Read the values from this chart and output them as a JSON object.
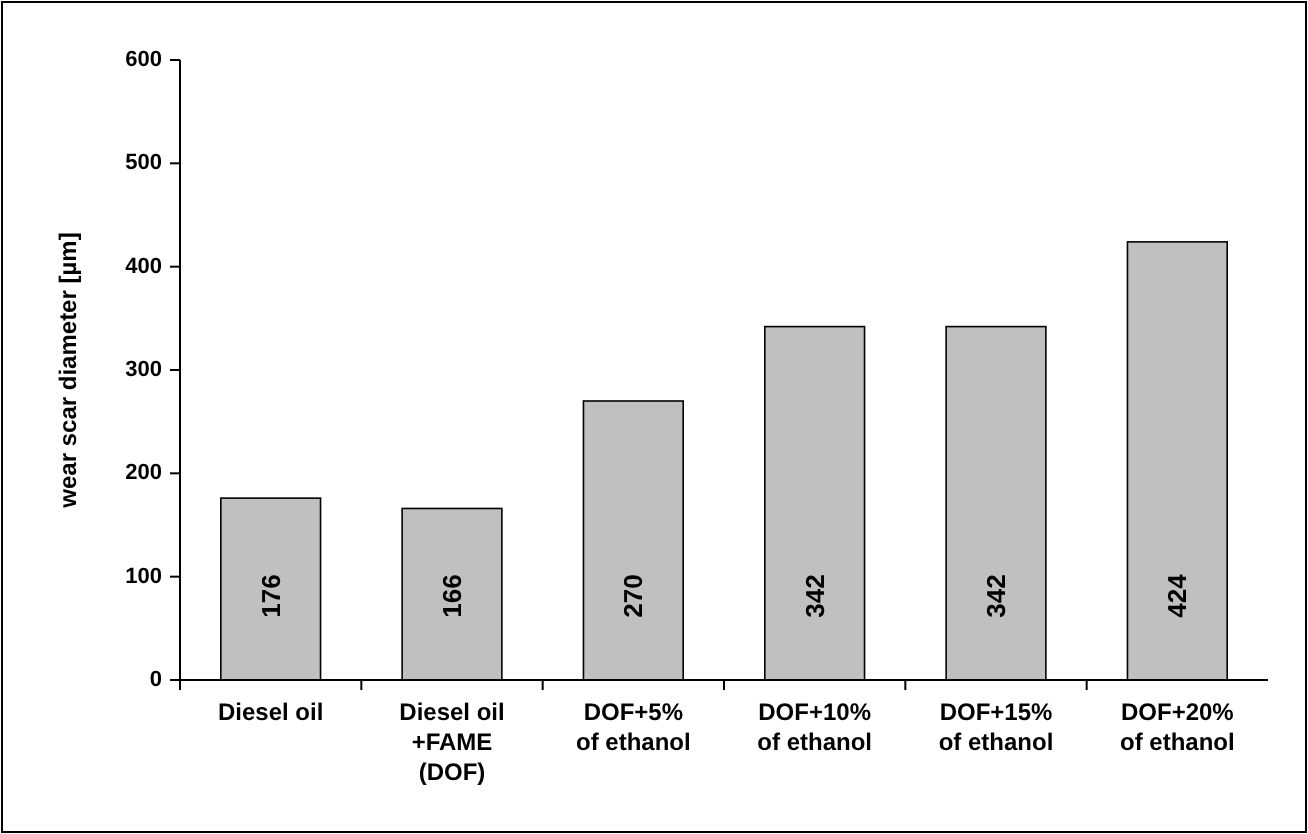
{
  "chart_data": {
    "type": "bar",
    "categories": [
      "Diesel oil",
      "Diesel oil\n+FAME\n(DOF)",
      "DOF+5%\nof ethanol",
      "DOF+10%\nof ethanol",
      "DOF+15%\nof ethanol",
      "DOF+20%\nof ethanol"
    ],
    "values": [
      176,
      166,
      270,
      342,
      342,
      424
    ],
    "color": "#c0c0c0",
    "ylabel": "wear scar diameter [µm]",
    "ylim": [
      0,
      600
    ],
    "yticks": [
      0,
      100,
      200,
      300,
      400,
      500,
      600
    ],
    "data_labels": true
  }
}
